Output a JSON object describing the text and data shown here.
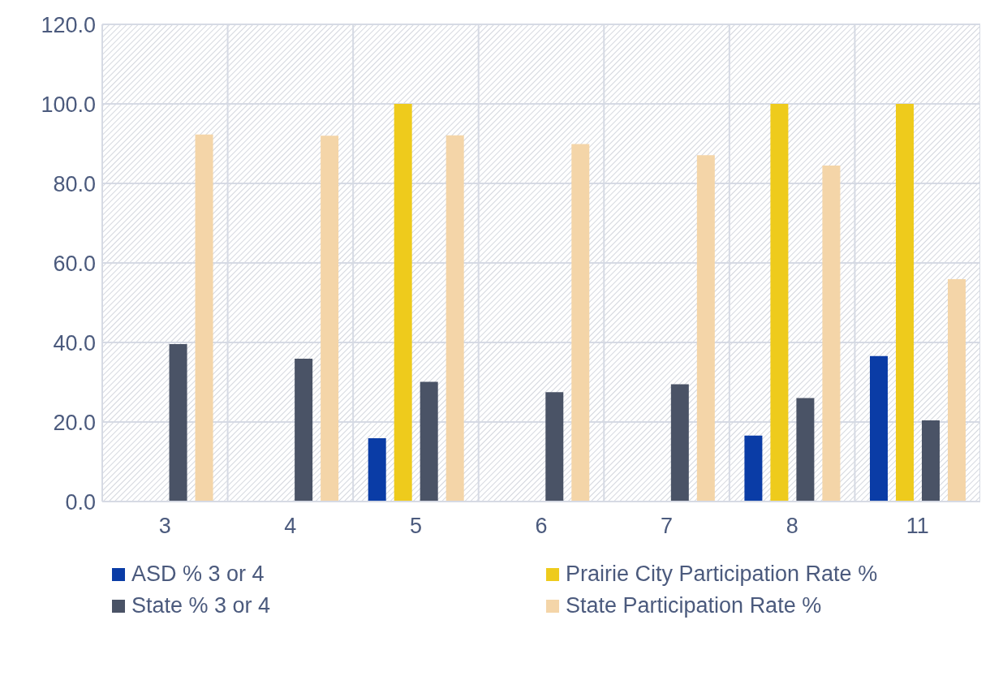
{
  "chart_data": {
    "type": "bar",
    "categories": [
      "3",
      "4",
      "5",
      "6",
      "7",
      "8",
      "11"
    ],
    "series": [
      {
        "name": "ASD % 3 or 4",
        "color": "#0a3ca6",
        "values": [
          null,
          null,
          15.9,
          null,
          null,
          16.6,
          36.6
        ]
      },
      {
        "name": "Prairie City Participation Rate %",
        "color": "#eecb1c",
        "values": [
          null,
          null,
          100,
          null,
          null,
          100,
          100
        ]
      },
      {
        "name": "State % 3 or 4",
        "color": "#4a5366",
        "values": [
          39.6,
          35.9,
          30.1,
          27.5,
          29.5,
          26.0,
          20.4
        ]
      },
      {
        "name": "State Participation Rate %",
        "color": "#f4d5a8",
        "values": [
          92.3,
          92.0,
          92.1,
          89.9,
          87.1,
          84.5,
          55.9
        ]
      }
    ],
    "ylim": [
      0,
      120
    ],
    "yticks": [
      {
        "value": 0,
        "label": "0.0"
      },
      {
        "value": 20,
        "label": "20.0"
      },
      {
        "value": 40,
        "label": "40.0"
      },
      {
        "value": 60,
        "label": "60.0"
      },
      {
        "value": 80,
        "label": "80.0"
      },
      {
        "value": 100,
        "label": "100.0"
      },
      {
        "value": 120,
        "label": "120.0"
      }
    ],
    "grid": true,
    "legend": "bottom"
  }
}
